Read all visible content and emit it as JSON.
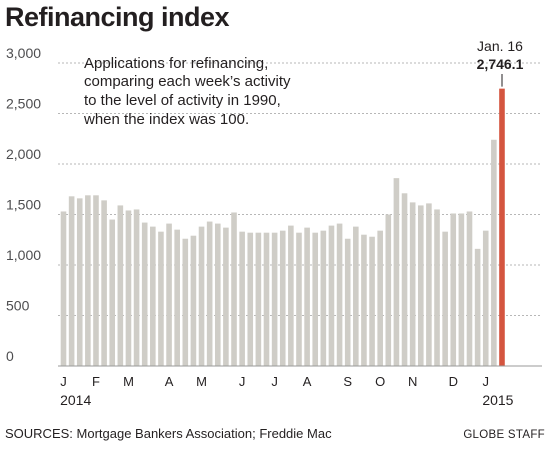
{
  "chart_data": {
    "type": "bar",
    "title": "Refinancing index",
    "subtitle_lines": [
      "Applications for refinancing,",
      "comparing each week’s activity",
      "to the level of activity in 1990,",
      "when the index was 100."
    ],
    "ylim": [
      0,
      3000
    ],
    "yticks": [
      {
        "value": 0,
        "label": "0"
      },
      {
        "value": 500,
        "label": "500"
      },
      {
        "value": 1000,
        "label": "1,000"
      },
      {
        "value": 1500,
        "label": "1,500"
      },
      {
        "value": 2000,
        "label": "2,000"
      },
      {
        "value": 2500,
        "label": "2,500"
      },
      {
        "value": 3000,
        "label": "3,000"
      }
    ],
    "month_labels": [
      {
        "label": "J",
        "index": 0
      },
      {
        "label": "F",
        "index": 4
      },
      {
        "label": "M",
        "index": 8
      },
      {
        "label": "A",
        "index": 13
      },
      {
        "label": "M",
        "index": 17
      },
      {
        "label": "J",
        "index": 22
      },
      {
        "label": "J",
        "index": 26
      },
      {
        "label": "A",
        "index": 30
      },
      {
        "label": "S",
        "index": 35
      },
      {
        "label": "O",
        "index": 39
      },
      {
        "label": "N",
        "index": 43
      },
      {
        "label": "D",
        "index": 48
      },
      {
        "label": "J",
        "index": 52
      }
    ],
    "year_labels": [
      {
        "label": "2014",
        "index": 1.5
      },
      {
        "label": "2015",
        "index": 53.5
      }
    ],
    "values": [
      1530,
      1680,
      1660,
      1690,
      1690,
      1640,
      1450,
      1590,
      1540,
      1550,
      1420,
      1380,
      1330,
      1410,
      1350,
      1260,
      1290,
      1380,
      1430,
      1410,
      1370,
      1520,
      1330,
      1320,
      1320,
      1320,
      1320,
      1340,
      1390,
      1320,
      1370,
      1320,
      1340,
      1390,
      1410,
      1260,
      1380,
      1300,
      1280,
      1340,
      1500,
      1860,
      1710,
      1620,
      1590,
      1610,
      1550,
      1330,
      1510,
      1510,
      1530,
      1160,
      1340,
      2240,
      2746.1
    ],
    "highlight_index": 54,
    "bar_color": "#cfcdc7",
    "highlight_color": "#d4553f",
    "annotation": {
      "date": "Jan. 16",
      "value": "2,746.1"
    },
    "source": "SOURCES: Mortgage Bankers Association; Freddie Mac",
    "credit": "GLOBE STAFF"
  }
}
